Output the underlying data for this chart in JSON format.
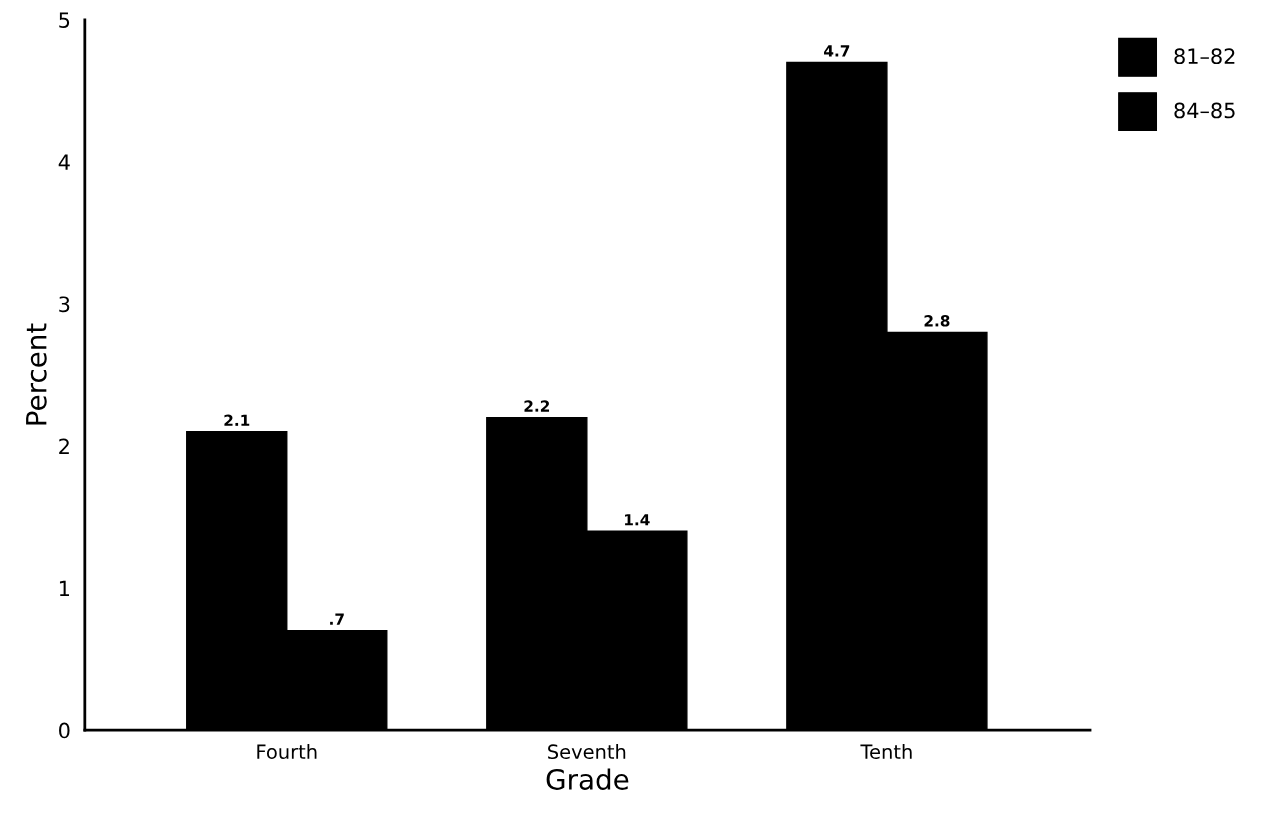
{
  "chart_data": {
    "type": "bar",
    "xlabel": "Grade",
    "ylabel": "Percent",
    "categories": [
      "Fourth",
      "Seventh",
      "Tenth"
    ],
    "series": [
      {
        "name": "81–82",
        "color": "#000000",
        "values": [
          2.1,
          2.2,
          4.7
        ],
        "value_labels": [
          "2.1",
          "2.2",
          "4.7"
        ]
      },
      {
        "name": "84–85",
        "color": "#000000",
        "values": [
          0.7,
          1.4,
          2.8
        ],
        "value_labels": [
          ".7",
          "1.4",
          "2.8"
        ]
      }
    ],
    "ylim": [
      0,
      5
    ],
    "yticks": [
      0,
      1,
      2,
      3,
      4,
      5
    ],
    "grid": false,
    "legend": "top right"
  }
}
